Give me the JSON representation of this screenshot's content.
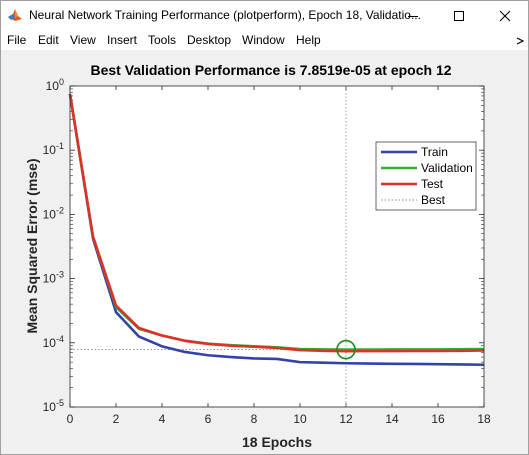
{
  "window": {
    "title": "Neural Network Training Performance (plotperform), Epoch 18, Validatio..."
  },
  "icons": {
    "app": "matlab-logo-icon",
    "minimize": "minimize-icon",
    "maximize": "maximize-icon",
    "close": "close-icon",
    "menubar_arrow": "dock-arrow-icon"
  },
  "menu": {
    "items": [
      "File",
      "Edit",
      "View",
      "Insert",
      "Tools",
      "Desktop",
      "Window",
      "Help"
    ]
  },
  "colors": {
    "train": "#3341a8",
    "validation": "#2db02d",
    "test": "#e0302a",
    "best": "#8a8a8a",
    "best_marker": "#1a8a1a"
  },
  "chart_data": {
    "type": "line",
    "title": "Best Validation Performance is 7.8519e-05 at epoch 12",
    "xlabel": "18 Epochs",
    "ylabel": "Mean Squared Error  (mse)",
    "xlim": [
      0,
      18
    ],
    "ylim": [
      1e-05,
      1
    ],
    "yscale": "log",
    "xticks": [
      "0",
      "2",
      "4",
      "6",
      "8",
      "10",
      "12",
      "14",
      "16",
      "18"
    ],
    "yticks": [
      {
        "base": "10",
        "exp": "0"
      },
      {
        "base": "10",
        "exp": "-1"
      },
      {
        "base": "10",
        "exp": "-2"
      },
      {
        "base": "10",
        "exp": "-3"
      },
      {
        "base": "10",
        "exp": "-4"
      },
      {
        "base": "10",
        "exp": "-5"
      }
    ],
    "x": [
      0,
      1,
      2,
      3,
      4,
      5,
      6,
      7,
      8,
      9,
      10,
      11,
      12,
      13,
      14,
      15,
      16,
      17,
      18
    ],
    "series": [
      {
        "name": "Train",
        "values": [
          0.75,
          0.0042,
          0.0003,
          0.000125,
          8.8e-05,
          7.2e-05,
          6.4e-05,
          6e-05,
          5.7e-05,
          5.6e-05,
          5e-05,
          4.9e-05,
          4.8e-05,
          4.75e-05,
          4.7e-05,
          4.68e-05,
          4.65e-05,
          4.6e-05,
          4.55e-05
        ]
      },
      {
        "name": "Validation",
        "values": [
          0.75,
          0.0045,
          0.00036,
          0.000165,
          0.00013,
          0.000108,
          9.7e-05,
          9.2e-05,
          8.8e-05,
          8.5e-05,
          8e-05,
          7.9e-05,
          7.85e-05,
          7.86e-05,
          7.87e-05,
          7.88e-05,
          7.9e-05,
          7.95e-05,
          8e-05
        ]
      },
      {
        "name": "Test",
        "values": [
          0.75,
          0.0045,
          0.00038,
          0.00017,
          0.00013,
          0.000107,
          9.6e-05,
          9e-05,
          8.7e-05,
          8.3e-05,
          7.7e-05,
          7.5e-05,
          7.4e-05,
          7.42e-05,
          7.44e-05,
          7.46e-05,
          7.48e-05,
          7.5e-05,
          7.6e-05
        ]
      }
    ],
    "best": {
      "name": "Best",
      "epoch": 12,
      "value": 7.8519e-05
    },
    "grid": false,
    "legend": "top-right"
  }
}
